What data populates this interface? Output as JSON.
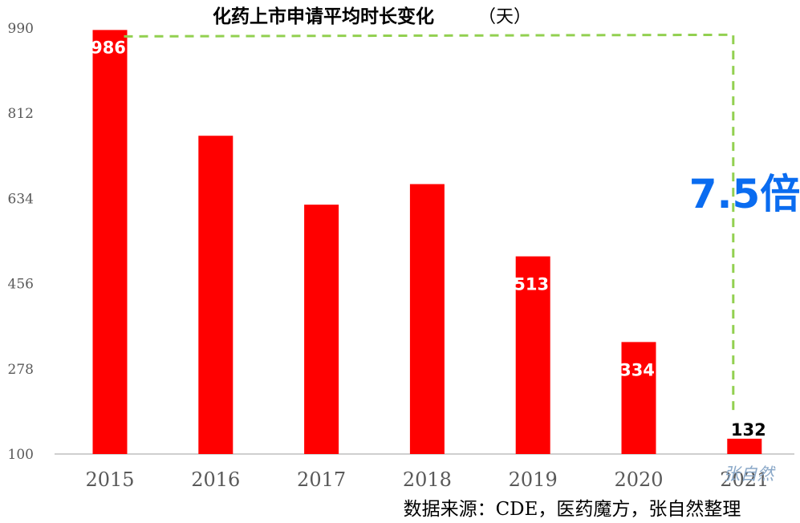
{
  "chart_data": {
    "type": "bar",
    "title": "化药上市申请平均时长变化",
    "title_unit": "（天）",
    "categories": [
      "2015",
      "2016",
      "2017",
      "2018",
      "2019",
      "2020",
      "2021"
    ],
    "values": [
      986,
      765,
      621,
      664,
      513,
      334,
      132
    ],
    "data_labels": [
      "986",
      "",
      "",
      "",
      "513",
      "334",
      "132"
    ],
    "yticks": [
      "100",
      "278",
      "456",
      "634",
      "812",
      "990"
    ],
    "ylim": [
      100,
      990
    ],
    "grid": false,
    "bar_color": "#ff0000",
    "annotation": {
      "text": "7.5倍",
      "color": "#0a6cf0",
      "line_color": "#92d050"
    },
    "watermark": "张自然",
    "source": "数据来源：CDE，医药魔方，张自然整理"
  }
}
